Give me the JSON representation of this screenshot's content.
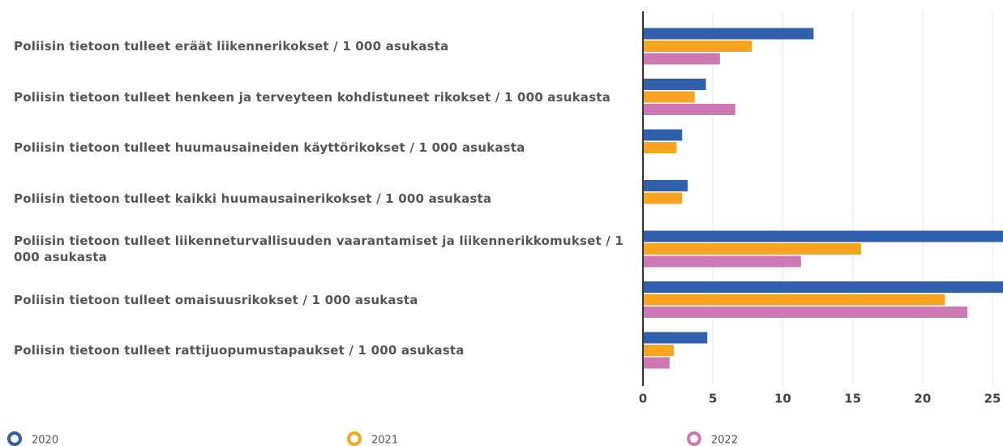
{
  "chart_data": {
    "type": "hbar",
    "categories": [
      "Poliisin tietoon tulleet eräät liikennerikokset / 1 000 asukasta",
      "Poliisin tietoon tulleet henkeen ja terveyteen kohdistuneet rikokset / 1 000 asukasta",
      "Poliisin tietoon tulleet huumausaineiden käyttörikokset / 1 000 asukasta",
      "Poliisin tietoon tulleet kaikki huumausainerikokset / 1 000 asukasta",
      "Poliisin tietoon tulleet liikenneturvallisuuden vaarantamiset ja liikennerikkomukset / 1 000 asukasta",
      "Poliisin tietoon tulleet omaisuusrikokset / 1 000 asukasta",
      "Poliisin tietoon tulleet rattijuopumustapaukset / 1 000 asukasta"
    ],
    "series": [
      {
        "name": "2020",
        "color": "#2f5fad",
        "values": [
          12.2,
          4.5,
          2.8,
          3.2,
          26.5,
          27.5,
          4.6
        ]
      },
      {
        "name": "2021",
        "color": "#f7a520",
        "values": [
          7.8,
          3.7,
          2.4,
          2.8,
          15.6,
          21.6,
          2.2
        ]
      },
      {
        "name": "2022",
        "color": "#cc79b3",
        "values": [
          5.5,
          6.6,
          null,
          null,
          11.3,
          23.2,
          1.9
        ]
      }
    ],
    "xlim": [
      0,
      25.75
    ],
    "xticks": [
      0,
      5,
      10,
      15,
      20,
      25
    ],
    "grid": true
  }
}
